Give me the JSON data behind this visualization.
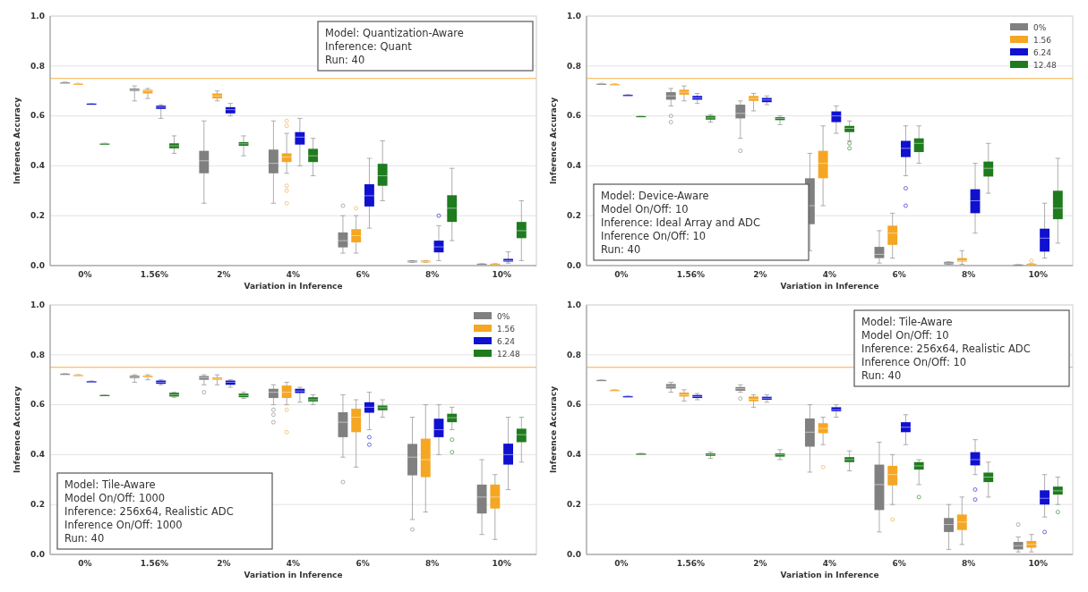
{
  "chart_data": [
    {
      "type": "box",
      "xlabel": "Variation in Inference",
      "ylabel": "Inference Accuracy",
      "categories": [
        "0%",
        "1.56%",
        "2%",
        "4%",
        "6%",
        "8%",
        "10%"
      ],
      "ylim": [
        0,
        1
      ],
      "yticks": [
        {
          "value": 0,
          "label": "0.0"
        },
        {
          "value": 0.2,
          "label": "0.2"
        },
        {
          "value": 0.4,
          "label": "0.4"
        },
        {
          "value": 0.6,
          "label": "0.6"
        },
        {
          "value": 0.8,
          "label": "0.8"
        },
        {
          "value": 1,
          "label": "1.0"
        }
      ],
      "grid": "y",
      "legend": false,
      "ref_lines": [
        {
          "axis": "y",
          "value": 0.75,
          "color": "#f5b041"
        }
      ],
      "annotations": [
        "Model: Quantization-Aware",
        "Inference: Quant",
        "Run: 40"
      ],
      "series": [
        {
          "color": "#808080",
          "boxes": [
            {
              "low": 0.735,
              "q1": 0.735,
              "median": 0.735,
              "q3": 0.735,
              "high": 0.735
            },
            {
              "low": 0.66,
              "q1": 0.7,
              "median": 0.705,
              "q3": 0.71,
              "high": 0.72
            },
            {
              "low": 0.25,
              "q1": 0.37,
              "median": 0.42,
              "q3": 0.46,
              "high": 0.58
            },
            {
              "low": 0.25,
              "q1": 0.37,
              "median": 0.41,
              "q3": 0.465,
              "high": 0.58
            },
            {
              "low": 0.05,
              "q1": 0.073,
              "median": 0.1,
              "q3": 0.133,
              "high": 0.2,
              "outliers": [
                0.24
              ]
            },
            {
              "low": 0.013,
              "q1": 0.013,
              "median": 0.016,
              "q3": 0.02,
              "high": 0.02
            },
            {
              "low": 0.008,
              "q1": 0.008,
              "median": 0.008,
              "q3": 0.008,
              "high": 0.008
            }
          ]
        },
        {
          "color": "#f5a623",
          "boxes": [
            {
              "low": 0.73,
              "q1": 0.73,
              "median": 0.73,
              "q3": 0.73,
              "high": 0.73
            },
            {
              "low": 0.67,
              "q1": 0.69,
              "median": 0.7,
              "q3": 0.705,
              "high": 0.71
            },
            {
              "low": 0.66,
              "q1": 0.67,
              "median": 0.68,
              "q3": 0.69,
              "high": 0.7
            },
            {
              "low": 0.37,
              "q1": 0.415,
              "median": 0.435,
              "q3": 0.45,
              "high": 0.53,
              "outliers": [
                0.25,
                0.3,
                0.32,
                0.56,
                0.58
              ]
            },
            {
              "low": 0.05,
              "q1": 0.093,
              "median": 0.12,
              "q3": 0.146,
              "high": 0.2,
              "outliers": [
                0.23
              ]
            },
            {
              "low": 0.013,
              "q1": 0.013,
              "median": 0.016,
              "q3": 0.02,
              "high": 0.02
            },
            {
              "low": 0.008,
              "q1": 0.008,
              "median": 0.008,
              "q3": 0.008,
              "high": 0.008
            }
          ]
        },
        {
          "color": "#1010d0",
          "boxes": [
            {
              "low": 0.65,
              "q1": 0.65,
              "median": 0.65,
              "q3": 0.65,
              "high": 0.65
            },
            {
              "low": 0.59,
              "q1": 0.628,
              "median": 0.635,
              "q3": 0.641,
              "high": 0.645
            },
            {
              "low": 0.6,
              "q1": 0.61,
              "median": 0.625,
              "q3": 0.635,
              "high": 0.65
            },
            {
              "low": 0.4,
              "q1": 0.485,
              "median": 0.515,
              "q3": 0.535,
              "high": 0.59
            },
            {
              "low": 0.15,
              "q1": 0.237,
              "median": 0.28,
              "q3": 0.326,
              "high": 0.43
            },
            {
              "low": 0.02,
              "q1": 0.053,
              "median": 0.075,
              "q3": 0.1,
              "high": 0.16,
              "outliers": [
                0.2
              ]
            },
            {
              "low": 0.01,
              "q1": 0.016,
              "median": 0.02,
              "q3": 0.027,
              "high": 0.055
            }
          ]
        },
        {
          "color": "#1e7b1e",
          "boxes": [
            {
              "low": 0.49,
              "q1": 0.49,
              "median": 0.49,
              "q3": 0.49,
              "high": 0.49
            },
            {
              "low": 0.45,
              "q1": 0.47,
              "median": 0.48,
              "q3": 0.49,
              "high": 0.52
            },
            {
              "low": 0.44,
              "q1": 0.48,
              "median": 0.488,
              "q3": 0.495,
              "high": 0.52
            },
            {
              "low": 0.36,
              "q1": 0.415,
              "median": 0.44,
              "q3": 0.468,
              "high": 0.51
            },
            {
              "low": 0.26,
              "q1": 0.32,
              "median": 0.36,
              "q3": 0.408,
              "high": 0.5
            },
            {
              "low": 0.1,
              "q1": 0.175,
              "median": 0.23,
              "q3": 0.282,
              "high": 0.39
            },
            {
              "low": 0.02,
              "q1": 0.11,
              "median": 0.14,
              "q3": 0.175,
              "high": 0.26
            }
          ]
        }
      ]
    },
    {
      "type": "box",
      "xlabel": "Variation in Inference",
      "ylabel": "Inference Accuracy",
      "categories": [
        "0%",
        "1.56%",
        "2%",
        "4%",
        "6%",
        "8%",
        "10%"
      ],
      "ylim": [
        0,
        1
      ],
      "yticks": [
        {
          "value": 0,
          "label": "0.0"
        },
        {
          "value": 0.2,
          "label": "0.2"
        },
        {
          "value": 0.4,
          "label": "0.4"
        },
        {
          "value": 0.6,
          "label": "0.6"
        },
        {
          "value": 0.8,
          "label": "0.8"
        },
        {
          "value": 1,
          "label": "1.0"
        }
      ],
      "grid": "y",
      "legend": "top right",
      "ref_lines": [
        {
          "axis": "y",
          "value": 0.75,
          "color": "#f5b041"
        }
      ],
      "annotations": [
        "Model: Device-Aware",
        "Model On/Off: 10",
        "Inference: Ideal Array and ADC",
        "Inference On/Off: 10",
        "Run: 40"
      ],
      "series": [
        {
          "name": "0%",
          "color": "#808080",
          "boxes": [
            {
              "low": 0.73,
              "q1": 0.73,
              "median": 0.73,
              "q3": 0.73,
              "high": 0.73
            },
            {
              "low": 0.64,
              "q1": 0.665,
              "median": 0.68,
              "q3": 0.695,
              "high": 0.71,
              "outliers": [
                0.575,
                0.6
              ]
            },
            {
              "low": 0.51,
              "q1": 0.59,
              "median": 0.61,
              "q3": 0.645,
              "high": 0.66,
              "outliers": [
                0.46
              ]
            },
            {
              "low": 0.06,
              "q1": 0.166,
              "median": 0.24,
              "q3": 0.35,
              "high": 0.45
            },
            {
              "low": 0.01,
              "q1": 0.03,
              "median": 0.045,
              "q3": 0.075,
              "high": 0.14
            },
            {
              "low": 0.005,
              "q1": 0.005,
              "median": 0.01,
              "q3": 0.015,
              "high": 0.015
            },
            {
              "low": 0.005,
              "q1": 0.005,
              "median": 0.005,
              "q3": 0.005,
              "high": 0.005
            }
          ]
        },
        {
          "name": "1.56",
          "color": "#f5a623",
          "boxes": [
            {
              "low": 0.728,
              "q1": 0.728,
              "median": 0.728,
              "q3": 0.728,
              "high": 0.728
            },
            {
              "low": 0.66,
              "q1": 0.685,
              "median": 0.695,
              "q3": 0.705,
              "high": 0.72
            },
            {
              "low": 0.62,
              "q1": 0.66,
              "median": 0.67,
              "q3": 0.68,
              "high": 0.69
            },
            {
              "low": 0.24,
              "q1": 0.35,
              "median": 0.41,
              "q3": 0.46,
              "high": 0.56
            },
            {
              "low": 0.03,
              "q1": 0.083,
              "median": 0.13,
              "q3": 0.16,
              "high": 0.21
            },
            {
              "low": 0.005,
              "q1": 0.016,
              "median": 0.02,
              "q3": 0.03,
              "high": 0.06
            },
            {
              "low": 0.008,
              "q1": 0.008,
              "median": 0.008,
              "q3": 0.008,
              "high": 0.008,
              "outliers": [
                0.02
              ]
            }
          ]
        },
        {
          "name": "6.24",
          "color": "#1010d0",
          "boxes": [
            {
              "low": 0.685,
              "q1": 0.685,
              "median": 0.685,
              "q3": 0.685,
              "high": 0.685
            },
            {
              "low": 0.65,
              "q1": 0.665,
              "median": 0.672,
              "q3": 0.68,
              "high": 0.69
            },
            {
              "low": 0.645,
              "q1": 0.655,
              "median": 0.664,
              "q3": 0.672,
              "high": 0.68
            },
            {
              "low": 0.53,
              "q1": 0.575,
              "median": 0.6,
              "q3": 0.618,
              "high": 0.64
            },
            {
              "low": 0.36,
              "q1": 0.435,
              "median": 0.47,
              "q3": 0.5,
              "high": 0.56,
              "outliers": [
                0.24,
                0.31
              ]
            },
            {
              "low": 0.13,
              "q1": 0.21,
              "median": 0.26,
              "q3": 0.306,
              "high": 0.41
            },
            {
              "low": 0.03,
              "q1": 0.056,
              "median": 0.11,
              "q3": 0.148,
              "high": 0.25
            }
          ]
        },
        {
          "name": "12.48",
          "color": "#1e7b1e",
          "boxes": [
            {
              "low": 0.6,
              "q1": 0.6,
              "median": 0.6,
              "q3": 0.6,
              "high": 0.6
            },
            {
              "low": 0.575,
              "q1": 0.585,
              "median": 0.592,
              "q3": 0.6,
              "high": 0.605
            },
            {
              "low": 0.565,
              "q1": 0.583,
              "median": 0.59,
              "q3": 0.595,
              "high": 0.6
            },
            {
              "low": 0.5,
              "q1": 0.535,
              "median": 0.55,
              "q3": 0.56,
              "high": 0.58,
              "outliers": [
                0.47,
                0.49
              ]
            },
            {
              "low": 0.41,
              "q1": 0.455,
              "median": 0.49,
              "q3": 0.51,
              "high": 0.56
            },
            {
              "low": 0.29,
              "q1": 0.357,
              "median": 0.39,
              "q3": 0.417,
              "high": 0.49
            },
            {
              "low": 0.09,
              "q1": 0.186,
              "median": 0.23,
              "q3": 0.3,
              "high": 0.43
            }
          ]
        }
      ]
    },
    {
      "type": "box",
      "xlabel": "Variation in Inference",
      "ylabel": "Inference Accuracy",
      "categories": [
        "0%",
        "1.56%",
        "2%",
        "4%",
        "6%",
        "8%",
        "10%"
      ],
      "ylim": [
        0,
        1
      ],
      "yticks": [
        {
          "value": 0,
          "label": "0.0"
        },
        {
          "value": 0.2,
          "label": "0.2"
        },
        {
          "value": 0.4,
          "label": "0.4"
        },
        {
          "value": 0.6,
          "label": "0.6"
        },
        {
          "value": 0.8,
          "label": "0.8"
        },
        {
          "value": 1,
          "label": "1.0"
        }
      ],
      "grid": "y",
      "legend": "top right",
      "ref_lines": [
        {
          "axis": "y",
          "value": 0.75,
          "color": "#f5b041"
        }
      ],
      "annotations": [
        "Model: Tile-Aware",
        "Model On/Off: 1000",
        "Inference: 256x64, Realistic ADC",
        "Inference On/Off: 1000",
        "Run: 40"
      ],
      "series": [
        {
          "name": "0%",
          "color": "#808080",
          "boxes": [
            {
              "low": 0.725,
              "q1": 0.725,
              "median": 0.725,
              "q3": 0.725,
              "high": 0.725
            },
            {
              "low": 0.69,
              "q1": 0.707,
              "median": 0.712,
              "q3": 0.717,
              "high": 0.72
            },
            {
              "low": 0.68,
              "q1": 0.7,
              "median": 0.708,
              "q3": 0.715,
              "high": 0.72,
              "outliers": [
                0.65
              ]
            },
            {
              "low": 0.6,
              "q1": 0.627,
              "median": 0.65,
              "q3": 0.664,
              "high": 0.68,
              "outliers": [
                0.53,
                0.56,
                0.58
              ]
            },
            {
              "low": 0.39,
              "q1": 0.47,
              "median": 0.53,
              "q3": 0.57,
              "high": 0.64,
              "outliers": [
                0.29
              ]
            },
            {
              "low": 0.14,
              "q1": 0.317,
              "median": 0.39,
              "q3": 0.443,
              "high": 0.55,
              "outliers": [
                0.1
              ]
            },
            {
              "low": 0.08,
              "q1": 0.164,
              "median": 0.23,
              "q3": 0.28,
              "high": 0.38
            }
          ]
        },
        {
          "name": "1.56",
          "color": "#f5a623",
          "boxes": [
            {
              "low": 0.72,
              "q1": 0.72,
              "median": 0.72,
              "q3": 0.72,
              "high": 0.72
            },
            {
              "low": 0.7,
              "q1": 0.71,
              "median": 0.713,
              "q3": 0.717,
              "high": 0.72
            },
            {
              "low": 0.68,
              "q1": 0.7,
              "median": 0.705,
              "q3": 0.71,
              "high": 0.72
            },
            {
              "low": 0.6,
              "q1": 0.627,
              "median": 0.65,
              "q3": 0.677,
              "high": 0.69,
              "outliers": [
                0.49,
                0.58
              ]
            },
            {
              "low": 0.35,
              "q1": 0.49,
              "median": 0.55,
              "q3": 0.584,
              "high": 0.62
            },
            {
              "low": 0.17,
              "q1": 0.31,
              "median": 0.38,
              "q3": 0.464,
              "high": 0.6
            },
            {
              "low": 0.06,
              "q1": 0.184,
              "median": 0.23,
              "q3": 0.28,
              "high": 0.32
            }
          ]
        },
        {
          "name": "6.24",
          "color": "#1010d0",
          "boxes": [
            {
              "low": 0.695,
              "q1": 0.695,
              "median": 0.695,
              "q3": 0.695,
              "high": 0.695
            },
            {
              "low": 0.68,
              "q1": 0.684,
              "median": 0.69,
              "q3": 0.697,
              "high": 0.7
            },
            {
              "low": 0.67,
              "q1": 0.68,
              "median": 0.69,
              "q3": 0.697,
              "high": 0.7
            },
            {
              "low": 0.61,
              "q1": 0.647,
              "median": 0.655,
              "q3": 0.664,
              "high": 0.67
            },
            {
              "low": 0.5,
              "q1": 0.568,
              "median": 0.59,
              "q3": 0.61,
              "high": 0.65,
              "outliers": [
                0.44,
                0.47
              ]
            },
            {
              "low": 0.4,
              "q1": 0.47,
              "median": 0.5,
              "q3": 0.544,
              "high": 0.6
            },
            {
              "low": 0.26,
              "q1": 0.36,
              "median": 0.4,
              "q3": 0.444,
              "high": 0.55
            }
          ]
        },
        {
          "name": "12.48",
          "color": "#1e7b1e",
          "boxes": [
            {
              "low": 0.64,
              "q1": 0.64,
              "median": 0.64,
              "q3": 0.64,
              "high": 0.64
            },
            {
              "low": 0.63,
              "q1": 0.633,
              "median": 0.64,
              "q3": 0.648,
              "high": 0.65
            },
            {
              "low": 0.625,
              "q1": 0.63,
              "median": 0.637,
              "q3": 0.645,
              "high": 0.65
            },
            {
              "low": 0.6,
              "q1": 0.613,
              "median": 0.62,
              "q3": 0.63,
              "high": 0.64
            },
            {
              "low": 0.55,
              "q1": 0.578,
              "median": 0.588,
              "q3": 0.597,
              "high": 0.62
            },
            {
              "low": 0.5,
              "q1": 0.53,
              "median": 0.548,
              "q3": 0.564,
              "high": 0.59,
              "outliers": [
                0.41,
                0.46
              ]
            },
            {
              "low": 0.37,
              "q1": 0.45,
              "median": 0.48,
              "q3": 0.504,
              "high": 0.55
            }
          ]
        }
      ]
    },
    {
      "type": "box",
      "xlabel": "Variation in Inference",
      "ylabel": "Inference Accuracy",
      "categories": [
        "0%",
        "1.56%",
        "2%",
        "4%",
        "6%",
        "8%",
        "10%"
      ],
      "ylim": [
        0,
        1
      ],
      "yticks": [
        {
          "value": 0,
          "label": "0.0"
        },
        {
          "value": 0.2,
          "label": "0.2"
        },
        {
          "value": 0.4,
          "label": "0.4"
        },
        {
          "value": 0.6,
          "label": "0.6"
        },
        {
          "value": 0.8,
          "label": "0.8"
        },
        {
          "value": 1,
          "label": "1.0"
        }
      ],
      "grid": "y",
      "legend": false,
      "ref_lines": [
        {
          "axis": "y",
          "value": 0.75,
          "color": "#f5b041"
        }
      ],
      "annotations": [
        "Model: Tile-Aware",
        "Model On/Off: 10",
        "Inference: 256x64, Realistic ADC",
        "Inference On/Off: 10",
        "Run: 40"
      ],
      "series": [
        {
          "color": "#808080",
          "boxes": [
            {
              "low": 0.7,
              "q1": 0.7,
              "median": 0.7,
              "q3": 0.7,
              "high": 0.7
            },
            {
              "low": 0.65,
              "q1": 0.665,
              "median": 0.674,
              "q3": 0.683,
              "high": 0.69
            },
            {
              "low": 0.65,
              "q1": 0.656,
              "median": 0.664,
              "q3": 0.671,
              "high": 0.68,
              "outliers": [
                0.625
              ]
            },
            {
              "low": 0.33,
              "q1": 0.432,
              "median": 0.49,
              "q3": 0.545,
              "high": 0.6
            },
            {
              "low": 0.09,
              "q1": 0.178,
              "median": 0.28,
              "q3": 0.36,
              "high": 0.45
            },
            {
              "low": 0.02,
              "q1": 0.09,
              "median": 0.12,
              "q3": 0.146,
              "high": 0.2
            },
            {
              "low": 0.01,
              "q1": 0.02,
              "median": 0.035,
              "q3": 0.05,
              "high": 0.07,
              "outliers": [
                0.12
              ]
            }
          ]
        },
        {
          "color": "#f5a623",
          "boxes": [
            {
              "low": 0.66,
              "q1": 0.66,
              "median": 0.66,
              "q3": 0.66,
              "high": 0.66
            },
            {
              "low": 0.615,
              "q1": 0.633,
              "median": 0.64,
              "q3": 0.649,
              "high": 0.66
            },
            {
              "low": 0.59,
              "q1": 0.614,
              "median": 0.622,
              "q3": 0.633,
              "high": 0.64
            },
            {
              "low": 0.44,
              "q1": 0.486,
              "median": 0.505,
              "q3": 0.526,
              "high": 0.55,
              "outliers": [
                0.35
              ]
            },
            {
              "low": 0.2,
              "q1": 0.277,
              "median": 0.32,
              "q3": 0.355,
              "high": 0.4,
              "outliers": [
                0.14
              ]
            },
            {
              "low": 0.04,
              "q1": 0.098,
              "median": 0.13,
              "q3": 0.16,
              "high": 0.23
            },
            {
              "low": 0.01,
              "q1": 0.027,
              "median": 0.04,
              "q3": 0.054,
              "high": 0.08
            }
          ]
        },
        {
          "color": "#1010d0",
          "boxes": [
            {
              "low": 0.635,
              "q1": 0.635,
              "median": 0.635,
              "q3": 0.635,
              "high": 0.635
            },
            {
              "low": 0.62,
              "q1": 0.627,
              "median": 0.633,
              "q3": 0.639,
              "high": 0.645
            },
            {
              "low": 0.61,
              "q1": 0.62,
              "median": 0.626,
              "q3": 0.632,
              "high": 0.64
            },
            {
              "low": 0.55,
              "q1": 0.574,
              "median": 0.58,
              "q3": 0.59,
              "high": 0.6
            },
            {
              "low": 0.44,
              "q1": 0.49,
              "median": 0.51,
              "q3": 0.53,
              "high": 0.56
            },
            {
              "low": 0.32,
              "q1": 0.357,
              "median": 0.38,
              "q3": 0.41,
              "high": 0.46,
              "outliers": [
                0.22,
                0.26
              ]
            },
            {
              "low": 0.15,
              "q1": 0.2,
              "median": 0.225,
              "q3": 0.257,
              "high": 0.32,
              "outliers": [
                0.09
              ]
            }
          ]
        },
        {
          "color": "#1e7b1e",
          "boxes": [
            {
              "low": 0.405,
              "q1": 0.405,
              "median": 0.405,
              "q3": 0.405,
              "high": 0.405
            },
            {
              "low": 0.385,
              "q1": 0.395,
              "median": 0.4,
              "q3": 0.405,
              "high": 0.41
            },
            {
              "low": 0.38,
              "q1": 0.392,
              "median": 0.4,
              "q3": 0.405,
              "high": 0.42
            },
            {
              "low": 0.335,
              "q1": 0.37,
              "median": 0.38,
              "q3": 0.39,
              "high": 0.415
            },
            {
              "low": 0.28,
              "q1": 0.34,
              "median": 0.355,
              "q3": 0.37,
              "high": 0.38,
              "outliers": [
                0.23
              ]
            },
            {
              "low": 0.23,
              "q1": 0.29,
              "median": 0.31,
              "q3": 0.328,
              "high": 0.37
            },
            {
              "low": 0.2,
              "q1": 0.24,
              "median": 0.255,
              "q3": 0.272,
              "high": 0.31,
              "outliers": [
                0.17
              ]
            }
          ]
        }
      ]
    }
  ]
}
